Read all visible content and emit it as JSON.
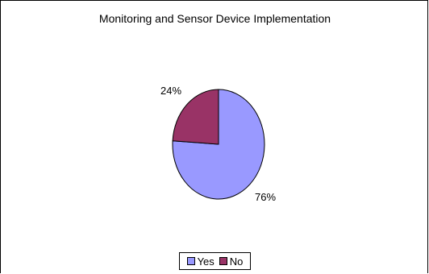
{
  "chart_data": {
    "type": "pie",
    "title": "Monitoring and Sensor Device Implementation",
    "categories": [
      "Yes",
      "No"
    ],
    "values": [
      76,
      24
    ],
    "labels": [
      "76%",
      "24%"
    ],
    "colors": [
      "#9999ff",
      "#993366"
    ],
    "legend_position": "bottom"
  }
}
